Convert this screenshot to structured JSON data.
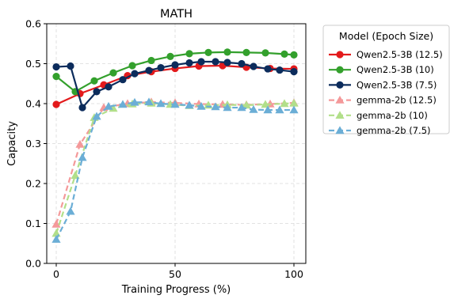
{
  "chart_data": {
    "type": "line",
    "title": "MATH",
    "xlabel": "Training Progress (%)",
    "ylabel": "Capacity",
    "xlim": [
      -4,
      105
    ],
    "ylim": [
      0.0,
      0.6
    ],
    "xticks": [
      0,
      50,
      100
    ],
    "yticks": [
      0.0,
      0.1,
      0.2,
      0.3,
      0.4,
      0.5,
      0.6
    ],
    "xtick_labels": [
      "0",
      "50",
      "100"
    ],
    "ytick_labels": [
      "0.0",
      "0.1",
      "0.2",
      "0.3",
      "0.4",
      "0.5",
      "0.6"
    ],
    "grid": true,
    "legend": {
      "title": "Model (Epoch Size)",
      "placement": "outside-top-right"
    },
    "series": [
      {
        "name": "Qwen2.5-3B (12.5)",
        "color": "#e31a1c",
        "marker": "circle",
        "dash": false,
        "x": [
          0,
          10,
          20,
          30,
          40,
          50,
          60,
          70,
          80,
          90,
          100
        ],
        "y": [
          0.398,
          0.425,
          0.447,
          0.47,
          0.48,
          0.488,
          0.494,
          0.495,
          0.491,
          0.488,
          0.487
        ]
      },
      {
        "name": "Qwen2.5-3B (10)",
        "color": "#33a02c",
        "marker": "circle",
        "dash": false,
        "x": [
          0,
          8,
          16,
          24,
          32,
          40,
          48,
          56,
          64,
          72,
          80,
          88,
          96,
          100
        ],
        "y": [
          0.468,
          0.43,
          0.457,
          0.477,
          0.495,
          0.508,
          0.518,
          0.525,
          0.528,
          0.529,
          0.528,
          0.527,
          0.524,
          0.522
        ]
      },
      {
        "name": "Qwen2.5-3B (7.5)",
        "color": "#0c2c5c",
        "marker": "circle",
        "dash": false,
        "x": [
          0,
          6,
          11,
          17,
          22,
          28,
          33,
          39,
          44,
          50,
          56,
          61,
          67,
          72,
          78,
          83,
          89,
          94,
          100
        ],
        "y": [
          0.492,
          0.494,
          0.39,
          0.43,
          0.442,
          0.46,
          0.475,
          0.483,
          0.49,
          0.497,
          0.502,
          0.505,
          0.505,
          0.503,
          0.5,
          0.493,
          0.487,
          0.484,
          0.48
        ]
      },
      {
        "name": "gemma-2b (12.5)",
        "color": "#f4999a",
        "marker": "triangle",
        "dash": true,
        "x": [
          0,
          10,
          20,
          30,
          40,
          50,
          60,
          70,
          80,
          90,
          100
        ],
        "y": [
          0.098,
          0.298,
          0.39,
          0.4,
          0.404,
          0.402,
          0.399,
          0.398,
          0.397,
          0.399,
          0.402
        ]
      },
      {
        "name": "gemma-2b (10)",
        "color": "#b2df8a",
        "marker": "triangle",
        "dash": true,
        "x": [
          0,
          8,
          16,
          24,
          32,
          40,
          48,
          56,
          64,
          72,
          80,
          88,
          96,
          100
        ],
        "y": [
          0.075,
          0.22,
          0.365,
          0.388,
          0.399,
          0.401,
          0.398,
          0.395,
          0.396,
          0.397,
          0.396,
          0.398,
          0.4,
          0.401
        ]
      },
      {
        "name": "gemma-2b (7.5)",
        "color": "#6baed6",
        "marker": "triangle",
        "dash": true,
        "x": [
          0,
          6,
          11,
          17,
          22,
          28,
          33,
          39,
          44,
          50,
          56,
          61,
          67,
          72,
          78,
          83,
          89,
          94,
          100
        ],
        "y": [
          0.06,
          0.13,
          0.265,
          0.368,
          0.393,
          0.398,
          0.403,
          0.404,
          0.4,
          0.398,
          0.396,
          0.393,
          0.392,
          0.39,
          0.39,
          0.385,
          0.384,
          0.384,
          0.384
        ]
      }
    ]
  }
}
